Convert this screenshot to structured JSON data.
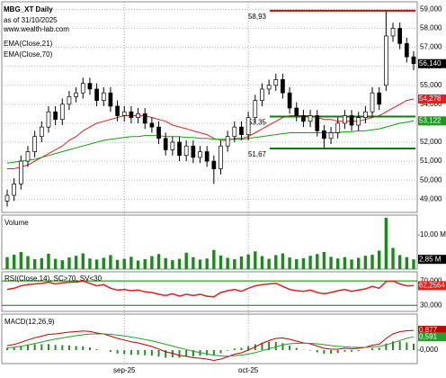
{
  "chart_data": [
    {
      "type": "candlestick",
      "title": "MBG_XT Daily",
      "subtitle": "as of 31/10/2025",
      "source": "www.wealth-lab.com",
      "categories": [
        null,
        null,
        null,
        null,
        null,
        null,
        null,
        null,
        null,
        null,
        null,
        null,
        null,
        null,
        null,
        null,
        null,
        "sep-25",
        null,
        null,
        null,
        null,
        null,
        null,
        null,
        null,
        null,
        null,
        null,
        null,
        null,
        null,
        null,
        null,
        null,
        "oct-25",
        null,
        null,
        null,
        null,
        null,
        null,
        null,
        null,
        null,
        null,
        null,
        null,
        null,
        null,
        null,
        null,
        null,
        null,
        null,
        null,
        null,
        null,
        null,
        null
      ],
      "open": [
        48.9,
        49.2,
        49.8,
        51.0,
        51.5,
        52.3,
        52.8,
        53.6,
        53.2,
        54.0,
        54.4,
        54.6,
        55.1,
        54.8,
        54.2,
        54.6,
        53.9,
        53.4,
        53.6,
        53.3,
        53.5,
        53.0,
        52.8,
        52.2,
        51.6,
        52.0,
        51.3,
        51.8,
        51.2,
        51.5,
        51.0,
        50.6,
        51.8,
        52.3,
        52.8,
        52.4,
        53.3,
        54.2,
        54.8,
        55.0,
        55.3,
        54.6,
        53.8,
        53.4,
        53.1,
        53.4,
        52.6,
        52.2,
        52.5,
        53.0,
        53.4,
        52.9,
        53.3,
        53.6,
        54.6,
        55.0,
        57.6,
        58.0,
        57.2,
        56.5
      ],
      "high": [
        49.5,
        50.1,
        51.3,
        51.8,
        52.6,
        53.1,
        53.9,
        53.9,
        54.3,
        54.7,
        54.9,
        55.4,
        55.4,
        55.1,
        54.9,
        54.9,
        54.2,
        53.9,
        53.9,
        53.8,
        53.8,
        53.3,
        53.1,
        52.5,
        52.3,
        52.3,
        52.1,
        52.1,
        51.8,
        51.8,
        51.3,
        52.1,
        52.6,
        53.1,
        53.1,
        53.6,
        54.5,
        55.1,
        55.3,
        55.6,
        55.6,
        54.9,
        54.1,
        53.7,
        53.7,
        53.7,
        52.9,
        52.8,
        53.3,
        53.7,
        53.7,
        53.6,
        53.9,
        54.9,
        54.9,
        58.93,
        58.3,
        58.3,
        57.5,
        56.8
      ],
      "low": [
        48.6,
        48.9,
        49.5,
        50.7,
        51.2,
        52.0,
        52.5,
        52.9,
        52.9,
        53.7,
        54.1,
        54.3,
        54.5,
        53.9,
        53.9,
        53.6,
        53.1,
        53.1,
        53.0,
        53.0,
        52.7,
        52.5,
        51.9,
        51.3,
        51.3,
        51.0,
        51.0,
        50.9,
        50.9,
        50.7,
        49.8,
        50.3,
        51.5,
        52.0,
        52.1,
        52.1,
        53.0,
        53.9,
        54.5,
        54.7,
        54.3,
        53.5,
        53.1,
        52.8,
        52.8,
        52.3,
        51.67,
        51.9,
        52.2,
        52.7,
        52.6,
        52.6,
        53.0,
        53.3,
        53.7,
        54.7,
        57.3,
        56.9,
        56.2,
        55.8
      ],
      "close": [
        49.2,
        49.8,
        51.0,
        51.5,
        52.3,
        52.8,
        53.6,
        53.2,
        54.0,
        54.4,
        54.6,
        55.1,
        54.8,
        54.2,
        54.6,
        53.9,
        53.4,
        53.6,
        53.3,
        53.5,
        53.0,
        52.8,
        52.2,
        51.6,
        52.0,
        51.3,
        51.8,
        51.2,
        51.5,
        51.0,
        50.6,
        51.8,
        52.3,
        52.8,
        52.4,
        53.3,
        54.2,
        54.8,
        55.0,
        55.3,
        54.6,
        53.8,
        53.4,
        53.1,
        53.4,
        52.6,
        52.2,
        52.5,
        53.0,
        53.4,
        52.9,
        53.3,
        53.6,
        54.6,
        54.0,
        57.6,
        58.0,
        57.2,
        56.5,
        56.14
      ],
      "close_label": "56,140",
      "up_color": "#ffffff",
      "down_color": "#000000",
      "series": [
        {
          "name": "EMA(Close,21)",
          "color": "#e02020",
          "last_value_label": "54,278",
          "values": [
            50.6,
            50.6,
            50.7,
            50.8,
            51.0,
            51.2,
            51.4,
            51.6,
            51.8,
            52.1,
            52.3,
            52.6,
            52.8,
            53.0,
            53.1,
            53.2,
            53.3,
            53.4,
            53.4,
            53.4,
            53.4,
            53.3,
            53.2,
            53.1,
            52.9,
            52.8,
            52.7,
            52.6,
            52.5,
            52.4,
            52.2,
            52.1,
            52.1,
            52.2,
            52.2,
            52.3,
            52.5,
            52.7,
            52.9,
            53.1,
            53.3,
            53.4,
            53.4,
            53.4,
            53.4,
            53.3,
            53.2,
            53.2,
            53.1,
            53.1,
            53.1,
            53.1,
            53.2,
            53.3,
            53.4,
            53.6,
            53.8,
            54.0,
            54.2,
            54.278
          ]
        },
        {
          "name": "EMA(Close,70)",
          "color": "#1a9a1a",
          "last_value_label": "53,122",
          "values": [
            50.9,
            50.95,
            51.0,
            51.05,
            51.1,
            51.2,
            51.3,
            51.4,
            51.5,
            51.6,
            51.7,
            51.8,
            51.9,
            52.0,
            52.1,
            52.15,
            52.2,
            52.25,
            52.3,
            52.3,
            52.35,
            52.35,
            52.35,
            52.3,
            52.3,
            52.3,
            52.25,
            52.25,
            52.2,
            52.2,
            52.15,
            52.15,
            52.15,
            52.15,
            52.15,
            52.2,
            52.25,
            52.3,
            52.35,
            52.4,
            52.45,
            52.5,
            52.5,
            52.5,
            52.5,
            52.5,
            52.5,
            52.5,
            52.5,
            52.55,
            52.55,
            52.6,
            52.6,
            52.65,
            52.7,
            52.8,
            52.9,
            53.0,
            53.06,
            53.122
          ]
        }
      ],
      "levels": [
        {
          "value": 58.93,
          "label": "58,93",
          "color": "#e00000"
        },
        {
          "value": 53.35,
          "label": "53,35",
          "color": "#008000"
        },
        {
          "value": 51.67,
          "label": "51,67",
          "color": "#008000"
        }
      ],
      "ylim": [
        48.3,
        59.4
      ],
      "yticks": [
        {
          "value": 49,
          "label": "49,000"
        },
        {
          "value": 50,
          "label": "50,000"
        },
        {
          "value": 51,
          "label": "51,000"
        },
        {
          "value": 52,
          "label": "52,000"
        },
        {
          "value": 53,
          "label": "53,000"
        },
        {
          "value": 54,
          "label": "54,000"
        },
        {
          "value": 55,
          "label": "55,000"
        },
        {
          "value": 56,
          "label": "56,000"
        },
        {
          "value": 57,
          "label": "57,000"
        },
        {
          "value": 58,
          "label": "58,000"
        },
        {
          "value": 59,
          "label": "59,000"
        }
      ],
      "grid": true
    },
    {
      "type": "bar",
      "title": "Volume",
      "color": "#1a8a1a",
      "last_value_label": "2,85 M",
      "values": [
        3.5,
        4.2,
        5.0,
        3.8,
        2.9,
        3.2,
        4.5,
        3.0,
        2.6,
        3.4,
        3.9,
        4.6,
        3.1,
        2.8,
        3.3,
        4.1,
        2.7,
        3.0,
        3.6,
        2.5,
        2.9,
        3.8,
        4.4,
        3.2,
        2.6,
        3.0,
        4.8,
        3.5,
        2.8,
        3.1,
        5.6,
        4.0,
        3.3,
        2.9,
        3.7,
        4.3,
        5.2,
        3.8,
        3.0,
        4.1,
        4.6,
        3.4,
        2.9,
        3.2,
        3.9,
        4.4,
        5.0,
        3.6,
        3.1,
        3.5,
        2.8,
        3.3,
        3.9,
        4.2,
        5.4,
        15.0,
        6.2,
        4.1,
        3.5,
        2.85
      ],
      "ylim": [
        0,
        15.8
      ],
      "yticks": [
        {
          "value": 10,
          "label": "10,00 M"
        }
      ]
    },
    {
      "type": "line",
      "title": "RSI(Close,14), SC>70, SV<30",
      "color": "#e02020",
      "last_value_label": "62,2564",
      "band_color": "#008000",
      "values": [
        56,
        58,
        62,
        64,
        65,
        66,
        68,
        65,
        67,
        68,
        68,
        70,
        66,
        62,
        64,
        58,
        55,
        56,
        54,
        55,
        52,
        51,
        48,
        46,
        49,
        45,
        48,
        46,
        48,
        45,
        44,
        51,
        54,
        56,
        53,
        58,
        62,
        64,
        65,
        66,
        61,
        56,
        54,
        53,
        55,
        51,
        49,
        51,
        54,
        56,
        53,
        55,
        57,
        61,
        58,
        69,
        70,
        65,
        62,
        62.2564
      ],
      "ylim": [
        20,
        85
      ],
      "yticks": [
        {
          "value": 70,
          "label": "70,000"
        },
        {
          "value": 30,
          "label": "30,000"
        }
      ]
    },
    {
      "type": "macd",
      "title": "MACD(12,26,9)",
      "series": [
        {
          "color": "#c00000",
          "last_value_label": "0,877",
          "values": [
            0.2,
            0.25,
            0.35,
            0.45,
            0.55,
            0.62,
            0.7,
            0.72,
            0.76,
            0.8,
            0.82,
            0.85,
            0.83,
            0.76,
            0.72,
            0.62,
            0.52,
            0.45,
            0.37,
            0.32,
            0.24,
            0.16,
            0.05,
            -0.08,
            -0.14,
            -0.24,
            -0.27,
            -0.34,
            -0.36,
            -0.4,
            -0.46,
            -0.4,
            -0.3,
            -0.18,
            -0.12,
            0.0,
            0.15,
            0.3,
            0.42,
            0.52,
            0.54,
            0.48,
            0.4,
            0.32,
            0.28,
            0.18,
            0.08,
            0.04,
            0.04,
            0.08,
            0.06,
            0.08,
            0.12,
            0.22,
            0.26,
            0.52,
            0.72,
            0.82,
            0.86,
            0.877
          ]
        },
        {
          "color": "#2a9a2a",
          "last_value_label": "0,591",
          "values": [
            0.1,
            0.13,
            0.17,
            0.23,
            0.29,
            0.36,
            0.43,
            0.49,
            0.54,
            0.59,
            0.64,
            0.68,
            0.71,
            0.72,
            0.72,
            0.7,
            0.67,
            0.63,
            0.58,
            0.53,
            0.47,
            0.41,
            0.34,
            0.26,
            0.18,
            0.1,
            0.03,
            -0.05,
            -0.11,
            -0.17,
            -0.23,
            -0.26,
            -0.27,
            -0.25,
            -0.22,
            -0.18,
            -0.11,
            -0.03,
            0.06,
            0.15,
            0.23,
            0.28,
            0.3,
            0.31,
            0.3,
            0.28,
            0.24,
            0.2,
            0.17,
            0.15,
            0.13,
            0.12,
            0.12,
            0.14,
            0.16,
            0.23,
            0.33,
            0.43,
            0.52,
            0.591
          ]
        }
      ],
      "histogram": {
        "color": "#2a8a2a",
        "values": [
          0.1,
          0.12,
          0.18,
          0.22,
          0.26,
          0.26,
          0.27,
          0.23,
          0.22,
          0.21,
          0.18,
          0.17,
          0.12,
          0.04,
          0.0,
          -0.08,
          -0.15,
          -0.18,
          -0.21,
          -0.21,
          -0.23,
          -0.25,
          -0.29,
          -0.34,
          -0.32,
          -0.34,
          -0.3,
          -0.29,
          -0.25,
          -0.23,
          -0.23,
          -0.14,
          -0.03,
          0.07,
          0.1,
          0.18,
          0.26,
          0.33,
          0.36,
          0.37,
          0.31,
          0.2,
          0.1,
          0.01,
          -0.02,
          -0.1,
          -0.16,
          -0.16,
          -0.13,
          -0.07,
          -0.07,
          -0.04,
          0.0,
          0.08,
          0.1,
          0.29,
          0.39,
          0.39,
          0.34,
          0.286
        ]
      },
      "ylim": [
        -0.6,
        1.6
      ],
      "yticks": [
        {
          "value": 0,
          "label": "0,000"
        }
      ]
    }
  ]
}
